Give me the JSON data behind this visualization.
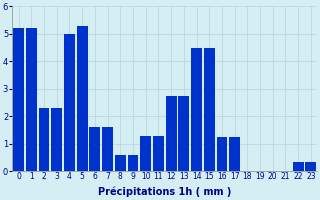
{
  "values": [
    5.2,
    5.2,
    2.3,
    2.3,
    5.0,
    5.3,
    1.6,
    1.6,
    0.6,
    0.6,
    1.3,
    1.3,
    2.75,
    2.75,
    4.5,
    4.5,
    1.25,
    1.25,
    0.0,
    0.0,
    0.0,
    0.0,
    0.35,
    0.35
  ],
  "bar_color": "#0033cc",
  "bg_color": "#d4eef4",
  "grid_color": "#b8d4d8",
  "xlabel": "Précipitations 1h ( mm )",
  "ylim": [
    0,
    6
  ],
  "yticks": [
    0,
    1,
    2,
    3,
    4,
    5,
    6
  ],
  "xlabel_fontsize": 7,
  "tick_fontsize": 5.5
}
